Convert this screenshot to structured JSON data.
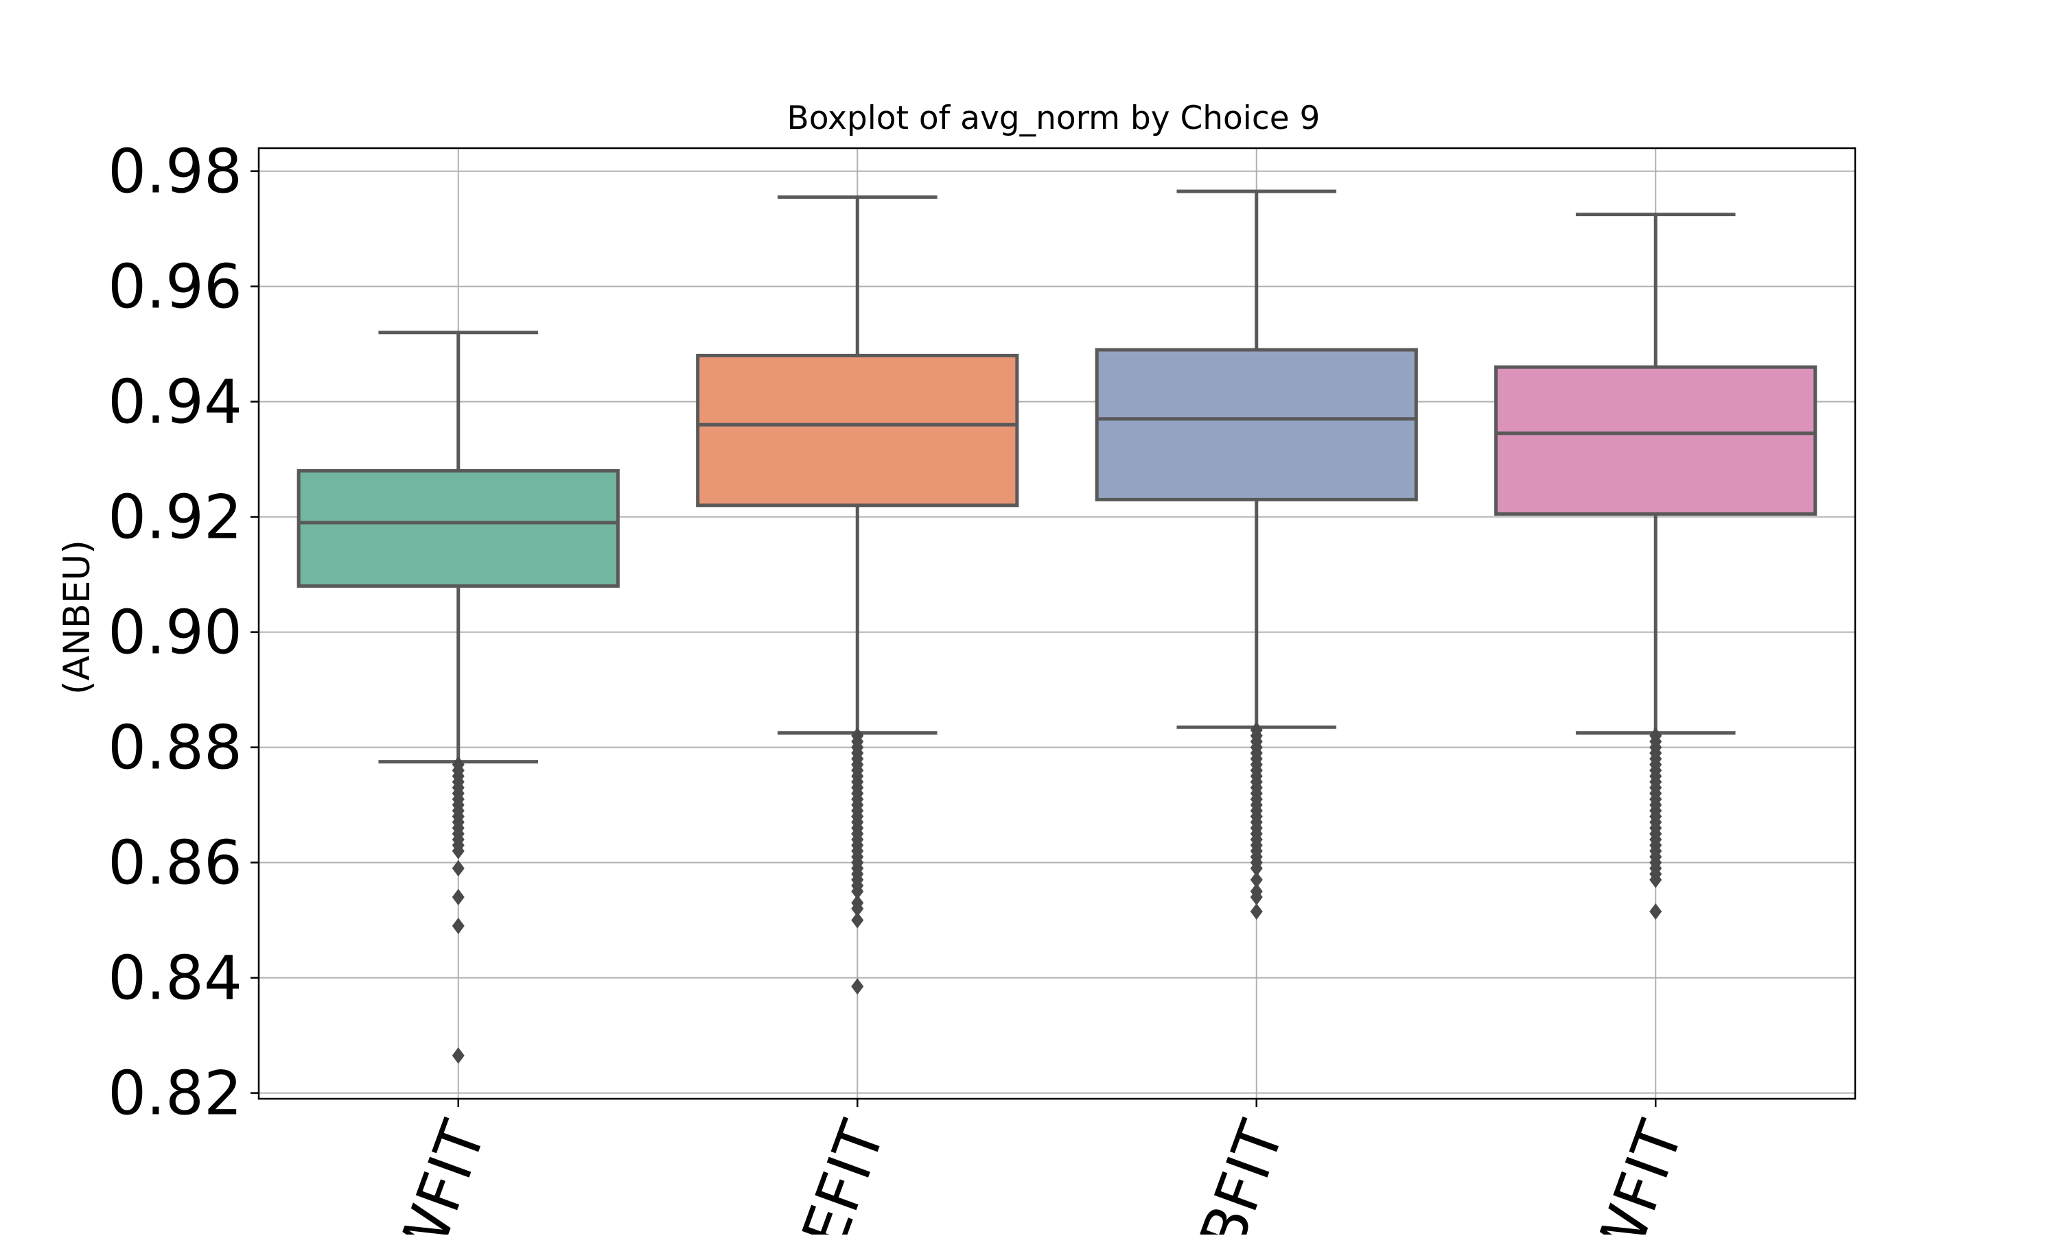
{
  "chart_data": {
    "type": "box",
    "title": "Boxplot of avg_norm by Choice 9",
    "xlabel": "",
    "ylabel": "(ANBEU)",
    "ylim": [
      0.819,
      0.984
    ],
    "yticks": [
      0.82,
      0.84,
      0.86,
      0.88,
      0.9,
      0.92,
      0.94,
      0.96,
      0.98
    ],
    "ytick_labels": [
      "0.82",
      "0.84",
      "0.86",
      "0.88",
      "0.90",
      "0.92",
      "0.94",
      "0.96",
      "0.98"
    ],
    "grid": true,
    "categories": [
      "WFIT",
      "EFIT",
      "BFIT",
      "WFIT"
    ],
    "boxes": [
      {
        "label": "WFIT",
        "color": "#72B6A1",
        "whisker_low": 0.8775,
        "q1": 0.908,
        "median": 0.919,
        "q3": 0.928,
        "whisker_high": 0.952,
        "outliers": [
          0.877,
          0.876,
          0.875,
          0.874,
          0.873,
          0.872,
          0.871,
          0.87,
          0.869,
          0.868,
          0.867,
          0.866,
          0.865,
          0.864,
          0.863,
          0.862,
          0.859,
          0.854,
          0.849,
          0.8265
        ]
      },
      {
        "label": "EFIT",
        "color": "#E99675",
        "whisker_low": 0.8825,
        "q1": 0.922,
        "median": 0.936,
        "q3": 0.948,
        "whisker_high": 0.9755,
        "outliers": [
          0.882,
          0.881,
          0.88,
          0.879,
          0.878,
          0.877,
          0.876,
          0.875,
          0.874,
          0.873,
          0.872,
          0.871,
          0.87,
          0.869,
          0.868,
          0.867,
          0.866,
          0.865,
          0.864,
          0.863,
          0.862,
          0.861,
          0.86,
          0.859,
          0.858,
          0.857,
          0.856,
          0.855,
          0.853,
          0.852,
          0.85,
          0.8385
        ]
      },
      {
        "label": "BFIT",
        "color": "#95A3C3",
        "whisker_low": 0.8835,
        "q1": 0.923,
        "median": 0.937,
        "q3": 0.949,
        "whisker_high": 0.9765,
        "outliers": [
          0.883,
          0.882,
          0.881,
          0.88,
          0.879,
          0.878,
          0.877,
          0.876,
          0.875,
          0.874,
          0.873,
          0.872,
          0.871,
          0.87,
          0.869,
          0.868,
          0.867,
          0.866,
          0.865,
          0.864,
          0.863,
          0.862,
          0.861,
          0.86,
          0.859,
          0.857,
          0.855,
          0.854,
          0.8515
        ]
      },
      {
        "label": "WFIT",
        "color": "#DB93BA",
        "whisker_low": 0.8825,
        "q1": 0.9205,
        "median": 0.9345,
        "q3": 0.946,
        "whisker_high": 0.9725,
        "outliers": [
          0.882,
          0.881,
          0.88,
          0.879,
          0.878,
          0.877,
          0.876,
          0.875,
          0.874,
          0.873,
          0.872,
          0.871,
          0.87,
          0.869,
          0.868,
          0.867,
          0.866,
          0.865,
          0.864,
          0.863,
          0.862,
          0.861,
          0.86,
          0.859,
          0.858,
          0.857,
          0.8515
        ]
      }
    ]
  }
}
